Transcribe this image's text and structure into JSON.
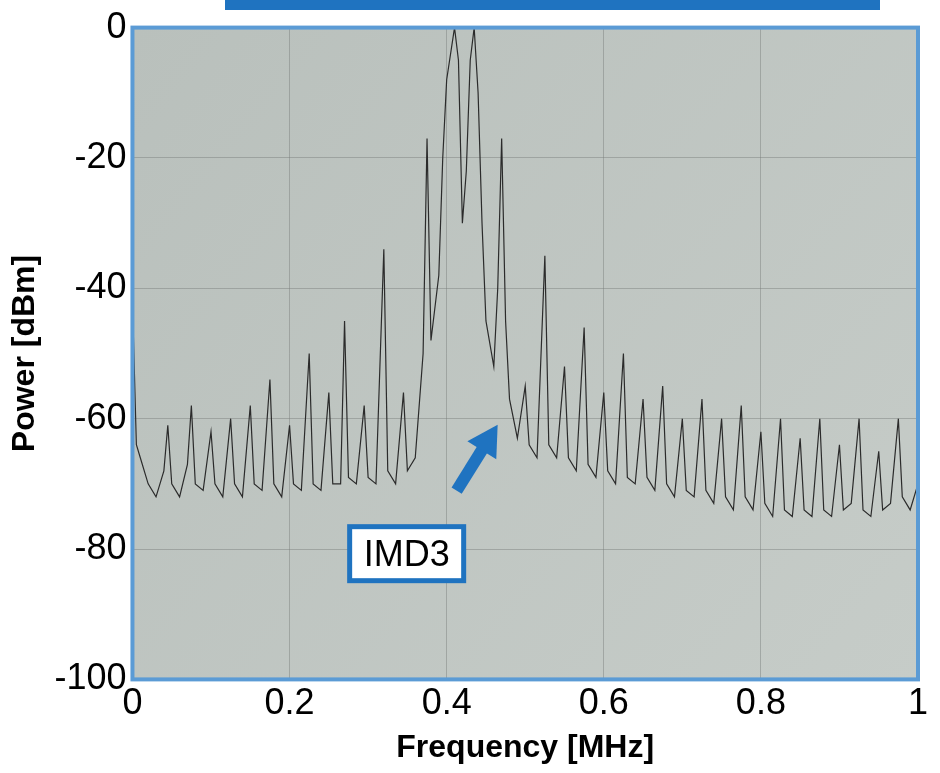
{
  "chart_data": {
    "type": "line",
    "x_label": "Frequency [MHz]",
    "y_label": "Power [dBm]",
    "x": [
      0.0,
      0.005,
      0.01,
      0.02,
      0.03,
      0.04,
      0.045,
      0.05,
      0.06,
      0.07,
      0.075,
      0.08,
      0.09,
      0.1,
      0.105,
      0.115,
      0.125,
      0.13,
      0.14,
      0.15,
      0.155,
      0.165,
      0.175,
      0.18,
      0.19,
      0.2,
      0.205,
      0.215,
      0.225,
      0.23,
      0.24,
      0.25,
      0.255,
      0.265,
      0.27,
      0.275,
      0.285,
      0.295,
      0.3,
      0.31,
      0.32,
      0.325,
      0.335,
      0.345,
      0.35,
      0.36,
      0.37,
      0.375,
      0.38,
      0.39,
      0.395,
      0.4,
      0.41,
      0.415,
      0.42,
      0.425,
      0.43,
      0.435,
      0.44,
      0.445,
      0.45,
      0.46,
      0.465,
      0.47,
      0.475,
      0.48,
      0.485,
      0.49,
      0.5,
      0.505,
      0.515,
      0.525,
      0.53,
      0.54,
      0.55,
      0.555,
      0.565,
      0.575,
      0.58,
      0.59,
      0.6,
      0.605,
      0.615,
      0.625,
      0.63,
      0.64,
      0.65,
      0.655,
      0.665,
      0.675,
      0.68,
      0.69,
      0.7,
      0.705,
      0.715,
      0.725,
      0.73,
      0.74,
      0.75,
      0.755,
      0.765,
      0.775,
      0.78,
      0.79,
      0.8,
      0.805,
      0.815,
      0.825,
      0.83,
      0.84,
      0.85,
      0.855,
      0.865,
      0.875,
      0.88,
      0.89,
      0.9,
      0.905,
      0.915,
      0.925,
      0.93,
      0.94,
      0.95,
      0.955,
      0.965,
      0.975,
      0.98,
      0.99,
      1.0
    ],
    "values": [
      -42,
      -64,
      -66,
      -70,
      -72,
      -68,
      -61,
      -70,
      -72,
      -67,
      -58,
      -70,
      -71,
      -62,
      -70,
      -72,
      -60,
      -70,
      -72,
      -58,
      -70,
      -71,
      -54,
      -70,
      -72,
      -61,
      -70,
      -71,
      -50,
      -70,
      -71,
      -56,
      -70,
      -70,
      -45,
      -69,
      -70,
      -58,
      -69,
      -70,
      -34,
      -68,
      -70,
      -56,
      -68,
      -66,
      -50,
      -17,
      -48,
      -38,
      -20,
      -8,
      0,
      -5,
      -30,
      -22,
      -5,
      0,
      -10,
      -30,
      -45,
      -52,
      -40,
      -17,
      -45,
      -57,
      -60,
      -63,
      -55,
      -64,
      -66,
      -35,
      -64,
      -66,
      -52,
      -66,
      -68,
      -46,
      -67,
      -69,
      -56,
      -68,
      -70,
      -50,
      -69,
      -70,
      -57,
      -69,
      -71,
      -55,
      -70,
      -72,
      -60,
      -71,
      -72,
      -57,
      -71,
      -73,
      -60,
      -72,
      -74,
      -58,
      -72,
      -74,
      -62,
      -73,
      -75,
      -60,
      -74,
      -75,
      -63,
      -74,
      -75,
      -60,
      -74,
      -75,
      -64,
      -74,
      -73,
      -60,
      -74,
      -75,
      -65,
      -74,
      -73,
      -60,
      -72,
      -74,
      -70
    ],
    "color": "#2b2b2b",
    "xlim": [
      0,
      1
    ],
    "xticks": [
      0,
      0.2,
      0.4,
      0.6,
      0.8,
      1
    ],
    "ylim": [
      -100,
      0
    ],
    "yticks": [
      -100,
      -80,
      -60,
      -40,
      -20,
      0
    ],
    "grid": true,
    "annotations": [
      {
        "text": "IMD3",
        "x": 0.47,
        "y": -60
      }
    ]
  }
}
